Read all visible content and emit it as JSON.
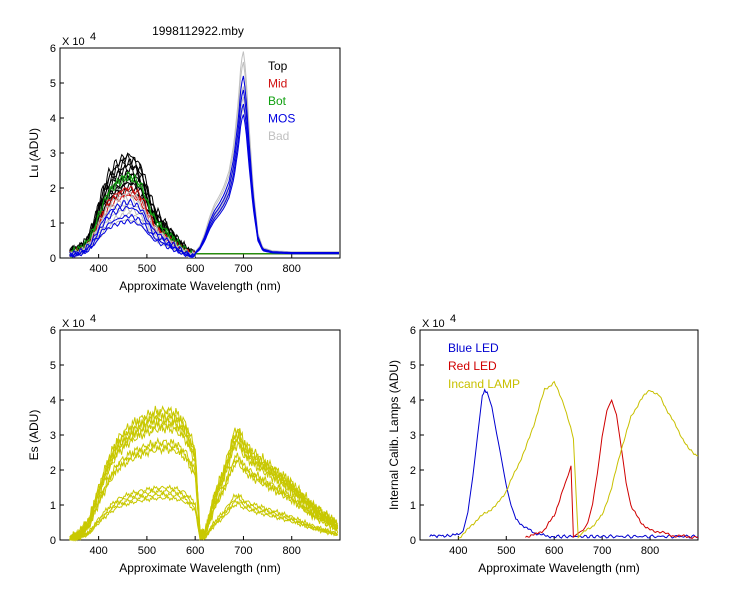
{
  "figure_title": "1998112922.mby",
  "colors": {
    "top": "#000000",
    "mid": "#d01010",
    "bot": "#10a010",
    "mos": "#0000e0",
    "bad": "#c0c0c0",
    "es": "#c8c800",
    "blue_led": "#0000d0",
    "red_led": "#d00000",
    "incand": "#c8c000"
  },
  "chart_data": [
    {
      "id": "lu",
      "type": "line",
      "xlabel": "Approximate Wavelength (nm)",
      "ylabel": "Lu (ADU)",
      "scale_label": "X 10",
      "scale_exp": "4",
      "xlim": [
        320,
        900
      ],
      "ylim": [
        0,
        6
      ],
      "xticks": [
        "400",
        "500",
        "600",
        "700",
        "800"
      ],
      "xtick_values": [
        400,
        500,
        600,
        700,
        800
      ],
      "yticks": [
        "0",
        "1",
        "2",
        "3",
        "4",
        "5",
        "6"
      ],
      "legend": [
        {
          "label": "Top",
          "color": "#000000"
        },
        {
          "label": "Mid",
          "color": "#d01010"
        },
        {
          "label": "Bot",
          "color": "#10a010"
        },
        {
          "label": "MOS",
          "color": "#0000e0"
        },
        {
          "label": "Bad",
          "color": "#c0c0c0"
        }
      ],
      "legend_position": "top-right",
      "groups": [
        {
          "name": "Top",
          "color": "#000000",
          "scales": [
            2.95,
            2.85,
            2.75,
            2.65,
            2.55,
            2.45,
            2.35,
            2.25,
            2.15,
            2.05,
            1.95
          ]
        },
        {
          "name": "Mid",
          "color": "#d01010",
          "scales": [
            2.0,
            1.9,
            1.8
          ]
        },
        {
          "name": "Bot",
          "color": "#10a010",
          "scales": [
            2.35,
            2.3
          ]
        },
        {
          "name": "Bad",
          "color": "#c0c0c0",
          "scales": [
            1.85,
            1.7,
            1.55,
            1.4,
            1.25,
            1.1
          ],
          "peak_scales": [
            5.9,
            5.6,
            5.2,
            4.9,
            4.6,
            4.3
          ]
        },
        {
          "name": "MOS",
          "color": "#0000e0",
          "scales": [
            1.6,
            1.45,
            1.2,
            1.05
          ],
          "peak_scales": [
            5.2,
            4.8,
            4.4,
            4.1
          ]
        }
      ],
      "profile_x": [
        340,
        350,
        360,
        370,
        380,
        390,
        400,
        410,
        420,
        430,
        440,
        450,
        460,
        470,
        480,
        490,
        500,
        510,
        520,
        530,
        540,
        550,
        560,
        570,
        580,
        590,
        600,
        610
      ],
      "profile_y": [
        0.06,
        0.08,
        0.1,
        0.14,
        0.22,
        0.35,
        0.52,
        0.68,
        0.8,
        0.88,
        0.93,
        0.97,
        1.0,
        0.98,
        0.93,
        0.86,
        0.7,
        0.55,
        0.45,
        0.38,
        0.32,
        0.26,
        0.2,
        0.14,
        0.09,
        0.05,
        0.03,
        0.03
      ],
      "peak_profile_x": [
        600,
        610,
        620,
        630,
        640,
        650,
        660,
        670,
        680,
        690,
        695,
        700,
        705,
        710,
        720,
        730,
        740,
        760,
        800,
        900
      ],
      "peak_profile_y": [
        0.03,
        0.06,
        0.12,
        0.2,
        0.26,
        0.3,
        0.35,
        0.42,
        0.55,
        0.78,
        0.95,
        1.0,
        0.9,
        0.7,
        0.35,
        0.12,
        0.05,
        0.035,
        0.03,
        0.03
      ]
    },
    {
      "id": "es",
      "type": "line",
      "xlabel": "Approximate Wavelength (nm)",
      "ylabel": "Es  (ADU)",
      "scale_label": "X 10",
      "scale_exp": "4",
      "xlim": [
        320,
        900
      ],
      "ylim": [
        0,
        6
      ],
      "xticks": [
        "400",
        "500",
        "600",
        "700",
        "800"
      ],
      "xtick_values": [
        400,
        500,
        600,
        700,
        800
      ],
      "yticks": [
        "0",
        "1",
        "2",
        "3",
        "4",
        "5",
        "6"
      ],
      "color": "#c8c800",
      "series_scales": [
        3.7,
        3.6,
        3.5,
        3.4,
        3.3,
        3.2,
        2.8,
        2.7,
        2.6,
        1.5,
        1.4,
        1.3,
        1.2
      ],
      "profile_x": [
        340,
        360,
        380,
        400,
        420,
        440,
        460,
        480,
        500,
        520,
        540,
        560,
        580,
        600,
        610,
        620,
        640,
        660,
        680,
        690,
        700,
        720,
        740,
        760,
        780,
        800,
        820,
        840,
        860,
        880,
        895
      ],
      "profile_y": [
        0.0,
        0.05,
        0.15,
        0.4,
        0.62,
        0.78,
        0.86,
        0.92,
        0.96,
        0.99,
        1.0,
        0.98,
        0.9,
        0.7,
        0.05,
        0.05,
        0.35,
        0.55,
        0.82,
        0.86,
        0.76,
        0.68,
        0.62,
        0.56,
        0.5,
        0.44,
        0.36,
        0.28,
        0.22,
        0.16,
        0.12
      ]
    },
    {
      "id": "lamps",
      "type": "line",
      "xlabel": "Approximate Wavelength (nm)",
      "ylabel": "Internal Calib. Lamps (ADU)",
      "scale_label": "X 10",
      "scale_exp": "4",
      "xlim": [
        320,
        900
      ],
      "ylim": [
        0,
        6
      ],
      "xticks": [
        "400",
        "500",
        "600",
        "700",
        "800"
      ],
      "xtick_values": [
        400,
        500,
        600,
        700,
        800
      ],
      "yticks": [
        "0",
        "1",
        "2",
        "3",
        "4",
        "5",
        "6"
      ],
      "legend": [
        {
          "label": "Blue LED",
          "color": "#0000d0"
        },
        {
          "label": "Red LED",
          "color": "#d00000"
        },
        {
          "label": "Incand LAMP",
          "color": "#c8c000"
        }
      ],
      "legend_position": "top-left",
      "series": [
        {
          "name": "Blue LED",
          "color": "#0000d0",
          "x": [
            340,
            380,
            400,
            410,
            420,
            430,
            440,
            450,
            455,
            460,
            470,
            480,
            490,
            500,
            510,
            520,
            540,
            560,
            580,
            600,
            700,
            900
          ],
          "y": [
            0.12,
            0.12,
            0.15,
            0.3,
            0.8,
            1.8,
            3.0,
            4.1,
            4.3,
            4.2,
            3.8,
            3.0,
            2.3,
            1.6,
            1.0,
            0.6,
            0.35,
            0.2,
            0.12,
            0.1,
            0.1,
            0.1
          ]
        },
        {
          "name": "Red LED",
          "color": "#d00000",
          "x": [
            540,
            560,
            580,
            600,
            620,
            635,
            640,
            650,
            660,
            670,
            680,
            690,
            700,
            710,
            720,
            730,
            740,
            750,
            760,
            780,
            800,
            850,
            900
          ],
          "y": [
            0.1,
            0.15,
            0.3,
            0.7,
            1.5,
            2.1,
            0.1,
            0.15,
            0.25,
            0.5,
            1.0,
            1.9,
            3.0,
            3.7,
            4.0,
            3.6,
            2.6,
            1.6,
            1.0,
            0.5,
            0.3,
            0.12,
            0.08
          ]
        },
        {
          "name": "Incand LAMP",
          "color": "#c8c000",
          "x": [
            400,
            420,
            440,
            460,
            480,
            500,
            520,
            540,
            560,
            580,
            600,
            620,
            640,
            650,
            660,
            680,
            700,
            720,
            740,
            760,
            780,
            800,
            820,
            840,
            860,
            880,
            900
          ],
          "y": [
            0.05,
            0.3,
            0.6,
            0.8,
            1.0,
            1.4,
            2.0,
            2.6,
            3.4,
            4.3,
            4.5,
            3.9,
            2.9,
            0.1,
            0.2,
            0.4,
            0.7,
            1.5,
            2.6,
            3.5,
            4.0,
            4.3,
            4.1,
            3.6,
            3.1,
            2.6,
            2.4
          ]
        }
      ]
    }
  ]
}
